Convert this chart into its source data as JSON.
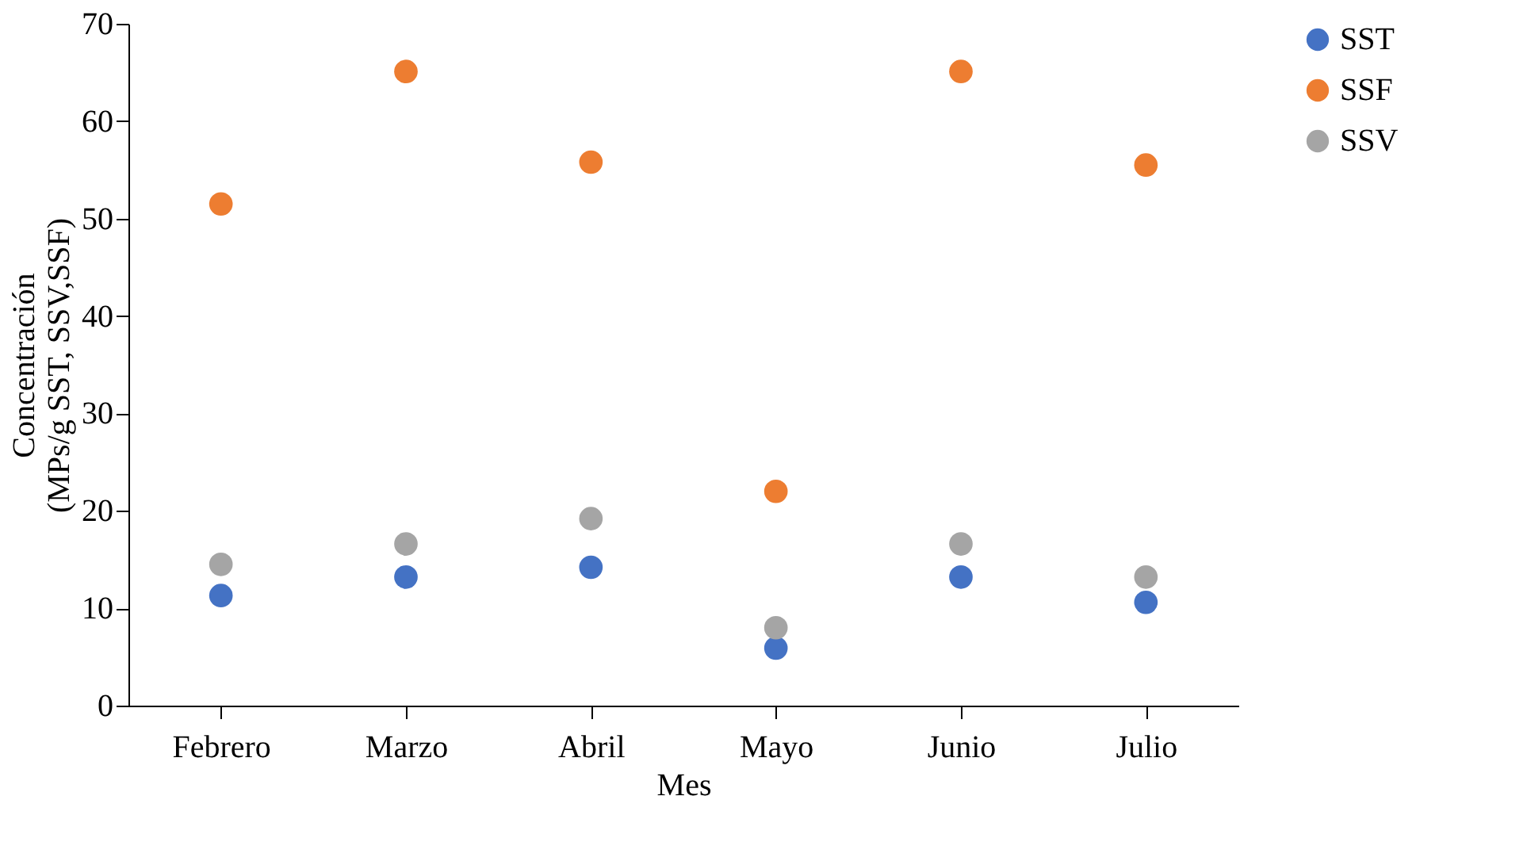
{
  "chart_data": {
    "type": "scatter",
    "xlabel": "Mes",
    "ylabel": "Concentración\n(MPs/g SST, SSV,SSF)",
    "categories": [
      "Febrero",
      "Marzo",
      "Abril",
      "Mayo",
      "Junio",
      "Julio"
    ],
    "series": [
      {
        "name": "SST",
        "color": "#4472c4",
        "values": [
          11.3,
          13.2,
          14.2,
          5.9,
          13.2,
          10.6
        ]
      },
      {
        "name": "SSF",
        "color": "#ed7d31",
        "values": [
          51.5,
          65.1,
          55.8,
          22.0,
          65.1,
          55.5
        ]
      },
      {
        "name": "SSV",
        "color": "#a5a5a5",
        "values": [
          14.5,
          16.6,
          19.2,
          8.0,
          16.6,
          13.2
        ]
      }
    ],
    "ylim": [
      0,
      70
    ],
    "yticks": [
      0,
      10,
      20,
      30,
      40,
      50,
      60,
      70
    ],
    "grid": false,
    "legend": "right",
    "marker": "circle"
  }
}
